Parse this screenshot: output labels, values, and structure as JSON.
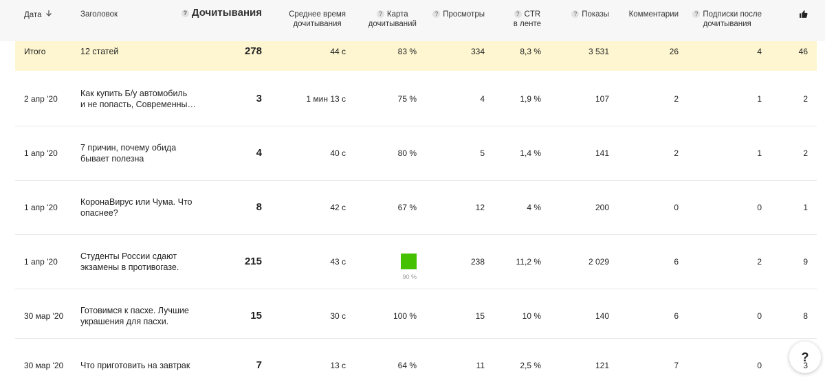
{
  "help_icon": "?",
  "header": {
    "columns": [
      {
        "lines": [
          "Дата"
        ],
        "sort": true
      },
      {
        "lines": [
          "Заголовок"
        ]
      },
      {
        "lines": [
          "Дочитывания"
        ],
        "help": true,
        "bold": true
      },
      {
        "lines": [
          "Среднее время",
          "дочитывания"
        ]
      },
      {
        "lines": [
          "Карта",
          "дочитываний"
        ],
        "help": true
      },
      {
        "lines": [
          "Просмотры"
        ],
        "help": true
      },
      {
        "lines": [
          "CTR",
          "в ленте"
        ],
        "help": true
      },
      {
        "lines": [
          "Показы"
        ],
        "help": true
      },
      {
        "lines": [
          "Комментарии"
        ]
      },
      {
        "lines": [
          "Подписки после",
          "дочитывания"
        ],
        "help": true
      },
      {
        "lines": [],
        "like_icon": true
      }
    ]
  },
  "table": {
    "total": [
      "Итого",
      [
        "12 статей"
      ],
      "278",
      "44 с",
      "83 %",
      "334",
      "8,3 %",
      "3 531",
      "26",
      "4",
      "46"
    ],
    "rows": [
      {
        "cells": [
          "2 апр '20",
          [
            "Как купить Б/у автомобиль",
            "и не попасть, Современны…"
          ],
          "3",
          "1 мин 13 с",
          "75 %",
          "4",
          "1,9 %",
          "107",
          "2",
          "1",
          "2"
        ]
      },
      {
        "cells": [
          "1 апр '20",
          [
            "7 причин, почему обида",
            "бывает полезна"
          ],
          "4",
          "40 с",
          "80 %",
          "5",
          "1,4 %",
          "141",
          "2",
          "1",
          "2"
        ]
      },
      {
        "cells": [
          "1 апр '20",
          [
            "КоронаВирус или Чума. Что",
            "опаснее?"
          ],
          "8",
          "42 с",
          "67 %",
          "12",
          "4 %",
          "200",
          "0",
          "0",
          "1"
        ]
      },
      {
        "cells": [
          "1 апр '20",
          [
            "Студенты России сдают",
            "экзамены в противогазе."
          ],
          "215",
          "43 с",
          "90 %",
          "238",
          "11,2 %",
          "2 029",
          "6",
          "2",
          "9"
        ],
        "map_bar": true
      },
      {
        "cells": [
          "30 мар '20",
          [
            "Готовимся к пасхе. Лучшие",
            "украшения для пасхи."
          ],
          "15",
          "30 с",
          "100 %",
          "15",
          "10 %",
          "140",
          "6",
          "0",
          "8"
        ]
      },
      {
        "cells": [
          "30 мар '20",
          [
            "Что приготовить на завтрак"
          ],
          "7",
          "13 с",
          "64 %",
          "11",
          "2,5 %",
          "121",
          "7",
          "0",
          "3"
        ]
      }
    ]
  }
}
